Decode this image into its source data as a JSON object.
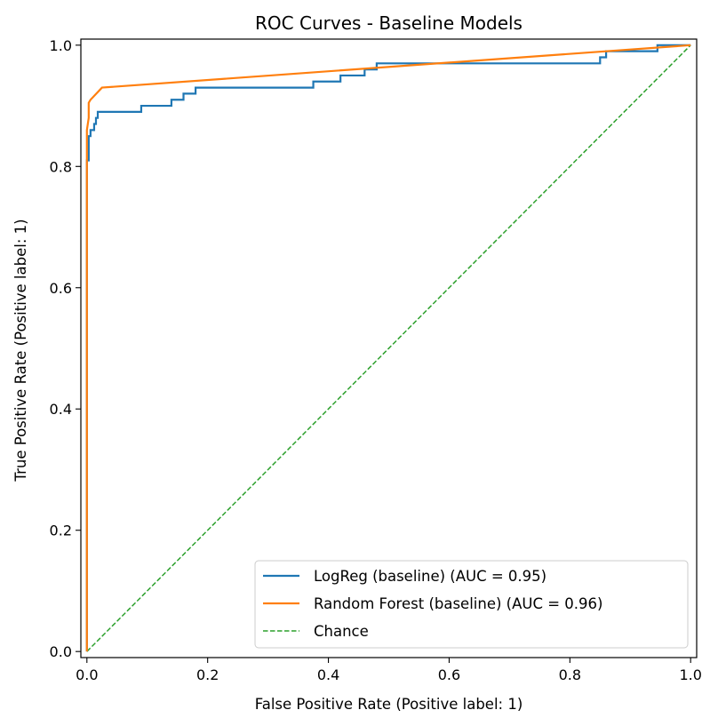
{
  "chart_data": {
    "type": "line",
    "title": "ROC Curves - Baseline Models",
    "xlabel": "False Positive Rate (Positive label: 1)",
    "ylabel": "True Positive Rate (Positive label: 1)",
    "xlim": [
      -0.01,
      1.01
    ],
    "ylim": [
      -0.01,
      1.01
    ],
    "xticks": [
      0.0,
      0.2,
      0.4,
      0.6,
      0.8,
      1.0
    ],
    "yticks": [
      0.0,
      0.2,
      0.4,
      0.6,
      0.8,
      1.0
    ],
    "xtick_labels": [
      "0.0",
      "0.2",
      "0.4",
      "0.6",
      "0.8",
      "1.0"
    ],
    "ytick_labels": [
      "0.0",
      "0.2",
      "0.4",
      "0.6",
      "0.8",
      "1.0"
    ],
    "grid": false,
    "legend_position": "bottom-right",
    "series": [
      {
        "name": "LogReg (baseline) (AUC = 0.95)",
        "color": "#1f77b4",
        "style": "solid",
        "x": [
          0.0,
          0.0,
          0.003,
          0.003,
          0.006,
          0.006,
          0.012,
          0.012,
          0.015,
          0.015,
          0.018,
          0.018,
          0.09,
          0.09,
          0.14,
          0.14,
          0.16,
          0.16,
          0.18,
          0.18,
          0.375,
          0.375,
          0.42,
          0.42,
          0.46,
          0.46,
          0.48,
          0.48,
          0.85,
          0.85,
          0.86,
          0.86,
          0.945,
          0.945,
          1.0
        ],
        "y": [
          0.0,
          0.81,
          0.81,
          0.85,
          0.85,
          0.86,
          0.86,
          0.87,
          0.87,
          0.88,
          0.88,
          0.89,
          0.89,
          0.9,
          0.9,
          0.91,
          0.91,
          0.92,
          0.92,
          0.93,
          0.93,
          0.94,
          0.94,
          0.95,
          0.95,
          0.96,
          0.96,
          0.97,
          0.97,
          0.98,
          0.98,
          0.99,
          0.99,
          1.0,
          1.0
        ]
      },
      {
        "name": "Random Forest (baseline) (AUC = 0.96)",
        "color": "#ff7f0e",
        "style": "solid",
        "x": [
          0.0,
          0.0,
          0.003,
          0.003,
          0.006,
          0.025,
          1.0
        ],
        "y": [
          0.0,
          0.86,
          0.88,
          0.905,
          0.91,
          0.93,
          1.0
        ]
      },
      {
        "name": "Chance",
        "color": "#2ca02c",
        "style": "dashed",
        "x": [
          0.0,
          1.0
        ],
        "y": [
          0.0,
          1.0
        ]
      }
    ]
  }
}
